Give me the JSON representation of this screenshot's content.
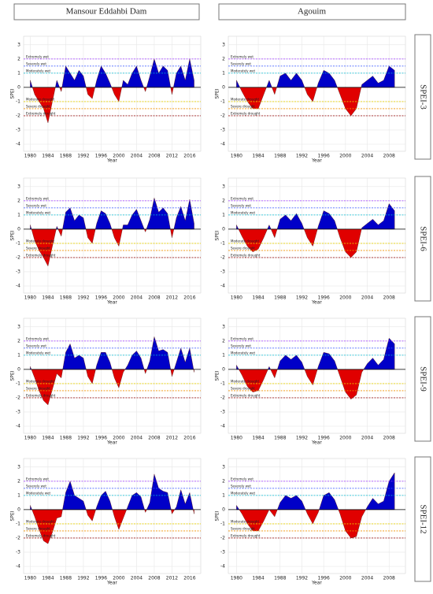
{
  "columns": [
    "Mansour Eddahbi Dam",
    "Agouim"
  ],
  "rows": [
    "SPEI-3",
    "SPEI-6",
    "SPEI-9",
    "SPEI-12"
  ],
  "thresholds": [
    {
      "value": 2,
      "label": "Extremely wet",
      "color": "#9b30ff"
    },
    {
      "value": 1.5,
      "label": "Severely wet",
      "color": "#3050ff"
    },
    {
      "value": 1,
      "label": "Moderately wet",
      "color": "#00b8d0"
    },
    {
      "value": -1,
      "label": "Moderate drought",
      "color": "#e8d000"
    },
    {
      "value": -1.5,
      "label": "Severe drought",
      "color": "#f09000"
    },
    {
      "value": -2,
      "label": "Extremely drought",
      "color": "#a02020"
    }
  ],
  "colors": {
    "positive": "#0000c8",
    "negative": "#e00000"
  },
  "chart_data": [
    {
      "type": "area",
      "xlabel": "Year",
      "ylabel": "SPEI",
      "xlim": [
        1978.5,
        2018.5
      ],
      "xticks": [
        1980,
        1984,
        1988,
        1992,
        1996,
        2000,
        2004,
        2008,
        2012,
        2016
      ],
      "ylim": [
        -4.5,
        3.6
      ],
      "yticks": [
        -4,
        -3,
        -2,
        -1,
        0,
        1,
        2,
        3
      ],
      "x": [
        1980,
        1981,
        1982,
        1983,
        1984,
        1985,
        1986,
        1987,
        1988,
        1989,
        1990,
        1991,
        1992,
        1993,
        1994,
        1995,
        1996,
        1997,
        1998,
        1999,
        2000,
        2001,
        2002,
        2003,
        2004,
        2005,
        2006,
        2007,
        2008,
        2009,
        2010,
        2011,
        2012,
        2013,
        2014,
        2015,
        2016,
        2017
      ],
      "values": [
        0.5,
        -0.5,
        -1,
        -1.5,
        -2.5,
        -1,
        0.5,
        -0.3,
        1.5,
        1,
        0.5,
        1.2,
        0.8,
        -0.5,
        -0.8,
        0.5,
        1.5,
        1,
        0.3,
        -0.5,
        -1,
        0.5,
        0.2,
        1,
        1.5,
        0.5,
        -0.3,
        0.8,
        2,
        1,
        1.5,
        1.2,
        -0.5,
        1,
        1.5,
        0.5,
        2,
        0.5
      ]
    },
    {
      "type": "area",
      "xlabel": "Year",
      "ylabel": "SPEI",
      "xlim": [
        1978.5,
        2011
      ],
      "xticks": [
        1980,
        1984,
        1988,
        1992,
        1996,
        2000,
        2004,
        2008
      ],
      "ylim": [
        -4.5,
        3.6
      ],
      "yticks": [
        -4,
        -3,
        -2,
        -1,
        0,
        1,
        2,
        3
      ],
      "x": [
        1980,
        1981,
        1982,
        1983,
        1984,
        1985,
        1986,
        1987,
        1988,
        1989,
        1990,
        1991,
        1992,
        1993,
        1994,
        1995,
        1996,
        1997,
        1998,
        1999,
        2000,
        2001,
        2002,
        2003,
        2004,
        2005,
        2006,
        2007,
        2008,
        2009
      ],
      "values": [
        0.5,
        -0.3,
        -1,
        -1.5,
        -1.5,
        -0.5,
        0.5,
        -0.5,
        0.8,
        1,
        0.5,
        1,
        0.5,
        -0.5,
        -1,
        0.3,
        1.2,
        1,
        0.5,
        -0.5,
        -1.5,
        -2,
        -1.5,
        0.2,
        0.5,
        0.8,
        0.3,
        0.5,
        1.5,
        1.2
      ]
    },
    {
      "type": "area",
      "xlabel": "Year",
      "ylabel": "SPEI",
      "xlim": [
        1978.5,
        2018.5
      ],
      "xticks": [
        1980,
        1984,
        1988,
        1992,
        1996,
        2000,
        2004,
        2008,
        2012,
        2016
      ],
      "ylim": [
        -4.5,
        3.6
      ],
      "yticks": [
        -4,
        -3,
        -2,
        -1,
        0,
        1,
        2,
        3
      ],
      "x": [
        1980,
        1981,
        1982,
        1983,
        1984,
        1985,
        1986,
        1987,
        1988,
        1989,
        1990,
        1991,
        1992,
        1993,
        1994,
        1995,
        1996,
        1997,
        1998,
        1999,
        2000,
        2001,
        2002,
        2003,
        2004,
        2005,
        2006,
        2007,
        2008,
        2009,
        2010,
        2011,
        2012,
        2013,
        2014,
        2015,
        2016,
        2017
      ],
      "values": [
        0.3,
        -0.8,
        -1.5,
        -2,
        -2.6,
        -1.2,
        0.2,
        -0.5,
        1.2,
        1.5,
        0.6,
        1,
        0.8,
        -0.6,
        -1,
        0.4,
        1.3,
        1.1,
        0.4,
        -0.6,
        -1.2,
        0.3,
        0.3,
        1,
        1.4,
        0.6,
        -0.2,
        0.7,
        2.2,
        1.2,
        1.5,
        1.1,
        -0.6,
        0.8,
        1.6,
        0.6,
        2.1,
        0.4
      ]
    },
    {
      "type": "area",
      "xlabel": "Year",
      "ylabel": "SPEI",
      "xlim": [
        1978.5,
        2011
      ],
      "xticks": [
        1980,
        1984,
        1988,
        1992,
        1996,
        2000,
        2004,
        2008
      ],
      "ylim": [
        -4.5,
        3.6
      ],
      "yticks": [
        -4,
        -3,
        -2,
        -1,
        0,
        1,
        2,
        3
      ],
      "x": [
        1980,
        1981,
        1982,
        1983,
        1984,
        1985,
        1986,
        1987,
        1988,
        1989,
        1990,
        1991,
        1992,
        1993,
        1994,
        1995,
        1996,
        1997,
        1998,
        1999,
        2000,
        2001,
        2002,
        2003,
        2004,
        2005,
        2006,
        2007,
        2008,
        2009
      ],
      "values": [
        0.3,
        -0.5,
        -1.2,
        -1.6,
        -1.4,
        -0.6,
        0.3,
        -0.6,
        0.7,
        1,
        0.6,
        1.1,
        0.4,
        -0.6,
        -1.2,
        0.2,
        1.3,
        1.1,
        0.6,
        -0.6,
        -1.6,
        -2,
        -1.6,
        0.1,
        0.4,
        0.7,
        0.3,
        0.6,
        1.8,
        1.3
      ]
    },
    {
      "type": "area",
      "xlabel": "Year",
      "ylabel": "SPEI",
      "xlim": [
        1978.5,
        2018.5
      ],
      "xticks": [
        1980,
        1984,
        1988,
        1992,
        1996,
        2000,
        2004,
        2008,
        2012,
        2016
      ],
      "ylim": [
        -4.5,
        3.6
      ],
      "yticks": [
        -4,
        -3,
        -2,
        -1,
        0,
        1,
        2,
        3
      ],
      "x": [
        1980,
        1981,
        1982,
        1983,
        1984,
        1985,
        1986,
        1987,
        1988,
        1989,
        1990,
        1991,
        1992,
        1993,
        1994,
        1995,
        1996,
        1997,
        1998,
        1999,
        2000,
        2001,
        2002,
        2003,
        2004,
        2005,
        2006,
        2007,
        2008,
        2009,
        2010,
        2011,
        2012,
        2013,
        2014,
        2015,
        2016,
        2017
      ],
      "values": [
        0.2,
        -0.6,
        -1.5,
        -2.2,
        -2.5,
        -1.4,
        -0.3,
        -0.6,
        1.2,
        1.8,
        0.8,
        1,
        0.8,
        -0.5,
        -1,
        0.3,
        1.2,
        1.2,
        0.5,
        -0.6,
        -1.3,
        -0.2,
        0.3,
        1,
        1.3,
        0.8,
        -0.3,
        0.6,
        2.3,
        1.3,
        1.4,
        1.2,
        -0.5,
        0.5,
        1.5,
        0.5,
        1.5,
        -0.2
      ]
    },
    {
      "type": "area",
      "xlabel": "Year",
      "ylabel": "SPEI",
      "xlim": [
        1978.5,
        2011
      ],
      "xticks": [
        1980,
        1984,
        1988,
        1992,
        1996,
        2000,
        2004,
        2008
      ],
      "ylim": [
        -4.5,
        3.6
      ],
      "yticks": [
        -4,
        -3,
        -2,
        -1,
        0,
        1,
        2,
        3
      ],
      "x": [
        1980,
        1981,
        1982,
        1983,
        1984,
        1985,
        1986,
        1987,
        1988,
        1989,
        1990,
        1991,
        1992,
        1993,
        1994,
        1995,
        1996,
        1997,
        1998,
        1999,
        2000,
        2001,
        2002,
        2003,
        2004,
        2005,
        2006,
        2007,
        2008,
        2009
      ],
      "values": [
        0.3,
        -0.4,
        -1.2,
        -1.6,
        -1.5,
        -0.7,
        0.2,
        -0.6,
        0.6,
        1,
        0.7,
        1,
        0.5,
        -0.5,
        -1.1,
        0.2,
        1.2,
        1.1,
        0.6,
        -0.5,
        -1.6,
        -2.1,
        -1.8,
        -0.2,
        0.4,
        0.8,
        0.3,
        0.7,
        2.2,
        1.8
      ]
    },
    {
      "type": "area",
      "xlabel": "Year",
      "ylabel": "SPEI",
      "xlim": [
        1978.5,
        2018.5
      ],
      "xticks": [
        1980,
        1984,
        1988,
        1992,
        1996,
        2000,
        2004,
        2008,
        2012,
        2016
      ],
      "ylim": [
        -4.5,
        3.6
      ],
      "yticks": [
        -4,
        -3,
        -2,
        -1,
        0,
        1,
        2,
        3
      ],
      "x": [
        1980,
        1981,
        1982,
        1983,
        1984,
        1985,
        1986,
        1987,
        1988,
        1989,
        1990,
        1991,
        1992,
        1993,
        1994,
        1995,
        1996,
        1997,
        1998,
        1999,
        2000,
        2001,
        2002,
        2003,
        2004,
        2005,
        2006,
        2007,
        2008,
        2009,
        2010,
        2011,
        2012,
        2013,
        2014,
        2015,
        2016,
        2017
      ],
      "values": [
        0.3,
        -0.5,
        -1.4,
        -2.2,
        -2.4,
        -1.6,
        -0.6,
        -0.5,
        1.2,
        2,
        1,
        0.8,
        0.6,
        -0.4,
        -0.8,
        0.2,
        1,
        1.3,
        0.6,
        -0.5,
        -1.4,
        -0.6,
        0.2,
        1,
        1.2,
        0.9,
        -0.2,
        0.5,
        2.5,
        1.5,
        1.3,
        1.2,
        -0.3,
        0.2,
        1.4,
        0.4,
        1.2,
        -0.3
      ]
    },
    {
      "type": "area",
      "xlabel": "Year",
      "ylabel": "SPEI",
      "xlim": [
        1978.5,
        2011
      ],
      "xticks": [
        1980,
        1984,
        1988,
        1992,
        1996,
        2000,
        2004,
        2008
      ],
      "ylim": [
        -4.5,
        3.6
      ],
      "yticks": [
        -4,
        -3,
        -2,
        -1,
        0,
        1,
        2,
        3
      ],
      "x": [
        1980,
        1981,
        1982,
        1983,
        1984,
        1985,
        1986,
        1987,
        1988,
        1989,
        1990,
        1991,
        1992,
        1993,
        1994,
        1995,
        1996,
        1997,
        1998,
        1999,
        2000,
        2001,
        2002,
        2003,
        2004,
        2005,
        2006,
        2007,
        2008,
        2009
      ],
      "values": [
        0.3,
        -0.3,
        -1,
        -1.5,
        -1.5,
        -0.8,
        0,
        -0.5,
        0.5,
        1,
        0.8,
        1,
        0.6,
        -0.3,
        -1,
        -0.2,
        1,
        1.2,
        0.7,
        -0.3,
        -1.5,
        -2,
        -1.9,
        -0.5,
        0.2,
        0.8,
        0.4,
        0.6,
        2,
        2.6
      ]
    }
  ]
}
